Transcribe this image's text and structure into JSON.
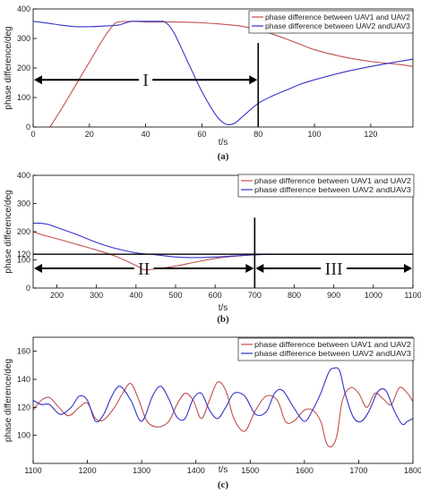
{
  "colors": {
    "series1": "#c0504d",
    "series2": "#3333cc",
    "annotation": "#000000",
    "axis": "#000000"
  },
  "chart_data": [
    {
      "type": "line",
      "panel_label": "(a)",
      "xlabel": "t/s",
      "ylabel": "phase difference/deg",
      "xlim": [
        0,
        135
      ],
      "ylim": [
        0,
        400
      ],
      "xticks": [
        0,
        20,
        40,
        60,
        80,
        100,
        120
      ],
      "yticks": [
        0,
        100,
        200,
        300,
        400
      ],
      "legend_position": "top-right",
      "series": [
        {
          "name": "phase difference between UAV1 and UAV2",
          "color": "#c0504d",
          "x": [
            6,
            10,
            15,
            20,
            25,
            28,
            30,
            35,
            40,
            50,
            55,
            60,
            65,
            70,
            75,
            80,
            85,
            90,
            95,
            100,
            110,
            120,
            130,
            135
          ],
          "y": [
            0,
            60,
            140,
            220,
            300,
            340,
            355,
            358,
            356,
            356,
            355,
            353,
            350,
            346,
            340,
            330,
            315,
            298,
            280,
            262,
            238,
            222,
            212,
            205
          ]
        },
        {
          "name": "phase difference between UAV2 andUAV3",
          "color": "#3333cc",
          "x": [
            0,
            5,
            10,
            15,
            20,
            25,
            30,
            32,
            35,
            40,
            45,
            47,
            50,
            55,
            60,
            65,
            68,
            70,
            72,
            75,
            80,
            85,
            90,
            95,
            100,
            110,
            120,
            130,
            135
          ],
          "y": [
            358,
            352,
            345,
            340,
            340,
            342,
            345,
            350,
            358,
            358,
            358,
            355,
            320,
            220,
            120,
            40,
            12,
            8,
            15,
            40,
            80,
            105,
            125,
            145,
            160,
            185,
            205,
            222,
            230
          ]
        }
      ],
      "annotations": [
        {
          "type": "vline",
          "x": 80,
          "y_range": [
            0,
            285
          ]
        },
        {
          "type": "double_arrow",
          "y": 160,
          "x_range": [
            0,
            80
          ],
          "label": "I",
          "label_x": 40
        }
      ]
    },
    {
      "type": "line",
      "panel_label": "(b)",
      "xlabel": "t/s",
      "ylabel": "phase difference/deg",
      "xlim": [
        140,
        1100
      ],
      "ylim": [
        0,
        400
      ],
      "xticks": [
        200,
        300,
        400,
        500,
        600,
        700,
        800,
        900,
        1000,
        1100
      ],
      "yticks": [
        0,
        100,
        120,
        200,
        300,
        400
      ],
      "legend_position": "top-right",
      "series": [
        {
          "name": "phase difference between UAV1 and UAV2",
          "color": "#c0504d",
          "x": [
            140,
            160,
            200,
            250,
            300,
            350,
            400,
            420,
            450,
            500,
            550,
            600,
            650,
            700,
            750,
            800,
            900,
            1000,
            1100
          ],
          "y": [
            200,
            190,
            175,
            155,
            135,
            112,
            80,
            65,
            68,
            78,
            92,
            105,
            113,
            118,
            120,
            120,
            120,
            120,
            120
          ]
        },
        {
          "name": "phase difference between UAV2 andUAV3",
          "color": "#3333cc",
          "x": [
            140,
            160,
            180,
            200,
            250,
            300,
            350,
            400,
            450,
            500,
            550,
            600,
            650,
            700,
            750,
            800,
            900,
            1000,
            1100
          ],
          "y": [
            230,
            230,
            225,
            215,
            190,
            162,
            140,
            125,
            118,
            110,
            108,
            110,
            114,
            118,
            120,
            120,
            120,
            120,
            120
          ]
        }
      ],
      "annotations": [
        {
          "type": "hline",
          "y": 120
        },
        {
          "type": "vline",
          "x": 700,
          "y_range": [
            0,
            250
          ]
        },
        {
          "type": "double_arrow",
          "y": 70,
          "x_range": [
            140,
            700
          ],
          "label": "II",
          "label_x": 420
        },
        {
          "type": "double_arrow",
          "y": 70,
          "x_range": [
            700,
            1100
          ],
          "label": "III",
          "label_x": 900
        }
      ]
    },
    {
      "type": "line",
      "panel_label": "(c)",
      "xlabel": "t/s",
      "ylabel": "phase difference/deg",
      "xlim": [
        1100,
        1800
      ],
      "ylim": [
        80,
        170
      ],
      "xticks": [
        1100,
        1200,
        1300,
        1400,
        1500,
        1600,
        1700,
        1800
      ],
      "yticks": [
        100,
        120,
        140,
        160
      ],
      "legend_position": "top-right",
      "series": [
        {
          "name": "phase difference between UAV1 and UAV2",
          "color": "#c0504d",
          "x": [
            1100,
            1115,
            1130,
            1145,
            1165,
            1185,
            1200,
            1215,
            1230,
            1250,
            1265,
            1280,
            1295,
            1310,
            1330,
            1350,
            1365,
            1380,
            1395,
            1410,
            1425,
            1440,
            1455,
            1470,
            1490,
            1510,
            1530,
            1550,
            1565,
            1580,
            1600,
            1615,
            1630,
            1640,
            1650,
            1660,
            1670,
            1685,
            1700,
            1715,
            1730,
            1745,
            1760,
            1775,
            1790,
            1800
          ],
          "y": [
            118,
            125,
            127,
            121,
            114,
            120,
            123,
            112,
            111,
            120,
            130,
            137,
            125,
            110,
            106,
            110,
            122,
            130,
            125,
            112,
            125,
            138,
            132,
            112,
            103,
            118,
            128,
            125,
            110,
            110,
            118,
            118,
            110,
            95,
            92,
            100,
            125,
            134,
            130,
            120,
            130,
            126,
            122,
            134,
            130,
            124
          ]
        },
        {
          "name": "phase difference between UAV2 andUAV3",
          "color": "#3333cc",
          "x": [
            1100,
            1115,
            1130,
            1150,
            1170,
            1185,
            1200,
            1215,
            1230,
            1245,
            1260,
            1280,
            1300,
            1320,
            1335,
            1350,
            1365,
            1380,
            1395,
            1410,
            1425,
            1440,
            1455,
            1470,
            1490,
            1510,
            1530,
            1545,
            1560,
            1580,
            1600,
            1615,
            1630,
            1645,
            1655,
            1665,
            1675,
            1690,
            1705,
            1720,
            1735,
            1750,
            1765,
            1780,
            1790,
            1800
          ],
          "y": [
            125,
            122,
            122,
            115,
            120,
            128,
            125,
            110,
            115,
            128,
            135,
            125,
            110,
            128,
            135,
            126,
            113,
            112,
            126,
            130,
            118,
            112,
            120,
            130,
            128,
            115,
            117,
            130,
            132,
            120,
            110,
            118,
            130,
            145,
            148,
            146,
            130,
            113,
            110,
            118,
            131,
            132,
            118,
            108,
            110,
            112
          ]
        }
      ],
      "annotations": []
    }
  ]
}
